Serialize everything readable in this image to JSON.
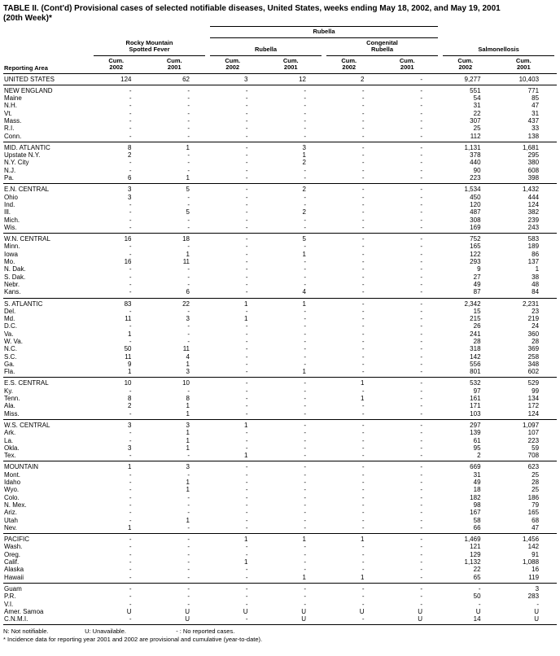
{
  "colors": {
    "text": "#000000",
    "background": "#ffffff",
    "rule": "#000000"
  },
  "title": "TABLE II. (Cont'd) Provisional cases of selected notifiable diseases, United States, weeks ending May 18, 2002, and May 19, 2001",
  "subtitle": "(20th Week)*",
  "header": {
    "reporting_area": "Reporting Area",
    "rubella_spanner": "Rubella",
    "groups": [
      "Rocky Mountain\nSpotted Fever",
      "Rubella",
      "Congenital\nRubella",
      "Salmonellosis"
    ],
    "subcols": [
      "Cum.\n2002",
      "Cum.\n2001",
      "Cum.\n2002",
      "Cum.\n2001",
      "Cum.\n2002",
      "Cum.\n2001",
      "Cum.\n2002",
      "Cum.\n2001"
    ]
  },
  "sections": [
    {
      "rows": [
        {
          "area": "UNITED STATES",
          "values": [
            "124",
            "62",
            "3",
            "12",
            "2",
            "-",
            "9,277",
            "10,403"
          ]
        }
      ]
    },
    {
      "rows": [
        {
          "area": "NEW ENGLAND",
          "values": [
            "-",
            "-",
            "-",
            "-",
            "-",
            "-",
            "551",
            "771"
          ]
        },
        {
          "area": "Maine",
          "values": [
            "-",
            "-",
            "-",
            "-",
            "-",
            "-",
            "54",
            "85"
          ]
        },
        {
          "area": "N.H.",
          "values": [
            "-",
            "-",
            "-",
            "-",
            "-",
            "-",
            "31",
            "47"
          ]
        },
        {
          "area": "Vt.",
          "values": [
            "-",
            "-",
            "-",
            "-",
            "-",
            "-",
            "22",
            "31"
          ]
        },
        {
          "area": "Mass.",
          "values": [
            "-",
            "-",
            "-",
            "-",
            "-",
            "-",
            "307",
            "437"
          ]
        },
        {
          "area": "R.I.",
          "values": [
            "-",
            "-",
            "-",
            "-",
            "-",
            "-",
            "25",
            "33"
          ]
        },
        {
          "area": "Conn.",
          "values": [
            "-",
            "-",
            "-",
            "-",
            "-",
            "-",
            "112",
            "138"
          ]
        }
      ]
    },
    {
      "rows": [
        {
          "area": "MID. ATLANTIC",
          "values": [
            "8",
            "1",
            "-",
            "3",
            "-",
            "-",
            "1,131",
            "1,681"
          ]
        },
        {
          "area": "Upstate N.Y.",
          "values": [
            "2",
            "-",
            "-",
            "1",
            "-",
            "-",
            "378",
            "295"
          ]
        },
        {
          "area": "N.Y. City",
          "values": [
            "-",
            "-",
            "-",
            "2",
            "-",
            "-",
            "440",
            "380"
          ]
        },
        {
          "area": "N.J.",
          "values": [
            "-",
            "-",
            "-",
            "-",
            "-",
            "-",
            "90",
            "608"
          ]
        },
        {
          "area": "Pa.",
          "values": [
            "6",
            "1",
            "-",
            "-",
            "-",
            "-",
            "223",
            "398"
          ]
        }
      ]
    },
    {
      "rows": [
        {
          "area": "E.N. CENTRAL",
          "values": [
            "3",
            "5",
            "-",
            "2",
            "-",
            "-",
            "1,534",
            "1,432"
          ]
        },
        {
          "area": "Ohio",
          "values": [
            "3",
            "-",
            "-",
            "-",
            "-",
            "-",
            "450",
            "444"
          ]
        },
        {
          "area": "Ind.",
          "values": [
            "-",
            "-",
            "-",
            "-",
            "-",
            "-",
            "120",
            "124"
          ]
        },
        {
          "area": "Ill.",
          "values": [
            "-",
            "5",
            "-",
            "2",
            "-",
            "-",
            "487",
            "382"
          ]
        },
        {
          "area": "Mich.",
          "values": [
            "-",
            "-",
            "-",
            "-",
            "-",
            "-",
            "308",
            "239"
          ]
        },
        {
          "area": "Wis.",
          "values": [
            "-",
            "-",
            "-",
            "-",
            "-",
            "-",
            "169",
            "243"
          ]
        }
      ]
    },
    {
      "rows": [
        {
          "area": "W.N. CENTRAL",
          "values": [
            "16",
            "18",
            "-",
            "5",
            "-",
            "-",
            "752",
            "583"
          ]
        },
        {
          "area": "Minn.",
          "values": [
            "-",
            "-",
            "-",
            "-",
            "-",
            "-",
            "165",
            "189"
          ]
        },
        {
          "area": "Iowa",
          "values": [
            "-",
            "1",
            "-",
            "1",
            "-",
            "-",
            "122",
            "86"
          ]
        },
        {
          "area": "Mo.",
          "values": [
            "16",
            "11",
            "-",
            "-",
            "-",
            "-",
            "293",
            "137"
          ]
        },
        {
          "area": "N. Dak.",
          "values": [
            "-",
            "-",
            "-",
            "-",
            "-",
            "-",
            "9",
            "1"
          ]
        },
        {
          "area": "S. Dak.",
          "values": [
            "-",
            "-",
            "-",
            "-",
            "-",
            "-",
            "27",
            "38"
          ]
        },
        {
          "area": "Nebr.",
          "values": [
            "-",
            "-",
            "-",
            "-",
            "-",
            "-",
            "49",
            "48"
          ]
        },
        {
          "area": "Kans.",
          "values": [
            "-",
            "6",
            "-",
            "4",
            "-",
            "-",
            "87",
            "84"
          ]
        }
      ]
    },
    {
      "rows": [
        {
          "area": "S. ATLANTIC",
          "values": [
            "83",
            "22",
            "1",
            "1",
            "-",
            "-",
            "2,342",
            "2,231"
          ]
        },
        {
          "area": "Del.",
          "values": [
            "-",
            "-",
            "-",
            "-",
            "-",
            "-",
            "15",
            "23"
          ]
        },
        {
          "area": "Md.",
          "values": [
            "11",
            "3",
            "1",
            "-",
            "-",
            "-",
            "215",
            "219"
          ]
        },
        {
          "area": "D.C.",
          "values": [
            "-",
            "-",
            "-",
            "-",
            "-",
            "-",
            "26",
            "24"
          ]
        },
        {
          "area": "Va.",
          "values": [
            "1",
            "-",
            "-",
            "-",
            "-",
            "-",
            "241",
            "360"
          ]
        },
        {
          "area": "W. Va.",
          "values": [
            "-",
            "-",
            "-",
            "-",
            "-",
            "-",
            "28",
            "28"
          ]
        },
        {
          "area": "N.C.",
          "values": [
            "50",
            "11",
            "-",
            "-",
            "-",
            "-",
            "318",
            "369"
          ]
        },
        {
          "area": "S.C.",
          "values": [
            "11",
            "4",
            "-",
            "-",
            "-",
            "-",
            "142",
            "258"
          ]
        },
        {
          "area": "Ga.",
          "values": [
            "9",
            "1",
            "-",
            "-",
            "-",
            "-",
            "556",
            "348"
          ]
        },
        {
          "area": "Fla.",
          "values": [
            "1",
            "3",
            "-",
            "1",
            "-",
            "-",
            "801",
            "602"
          ]
        }
      ]
    },
    {
      "rows": [
        {
          "area": "E.S. CENTRAL",
          "values": [
            "10",
            "10",
            "-",
            "-",
            "1",
            "-",
            "532",
            "529"
          ]
        },
        {
          "area": "Ky.",
          "values": [
            "-",
            "-",
            "-",
            "-",
            "-",
            "-",
            "97",
            "99"
          ]
        },
        {
          "area": "Tenn.",
          "values": [
            "8",
            "8",
            "-",
            "-",
            "1",
            "-",
            "161",
            "134"
          ]
        },
        {
          "area": "Ala.",
          "values": [
            "2",
            "1",
            "-",
            "-",
            "-",
            "-",
            "171",
            "172"
          ]
        },
        {
          "area": "Miss.",
          "values": [
            "-",
            "1",
            "-",
            "-",
            "-",
            "-",
            "103",
            "124"
          ]
        }
      ]
    },
    {
      "rows": [
        {
          "area": "W.S. CENTRAL",
          "values": [
            "3",
            "3",
            "1",
            "-",
            "-",
            "-",
            "297",
            "1,097"
          ]
        },
        {
          "area": "Ark.",
          "values": [
            "-",
            "1",
            "-",
            "-",
            "-",
            "-",
            "139",
            "107"
          ]
        },
        {
          "area": "La.",
          "values": [
            "-",
            "1",
            "-",
            "-",
            "-",
            "-",
            "61",
            "223"
          ]
        },
        {
          "area": "Okla.",
          "values": [
            "3",
            "1",
            "-",
            "-",
            "-",
            "-",
            "95",
            "59"
          ]
        },
        {
          "area": "Tex.",
          "values": [
            "-",
            "-",
            "1",
            "-",
            "-",
            "-",
            "2",
            "708"
          ]
        }
      ]
    },
    {
      "rows": [
        {
          "area": "MOUNTAIN",
          "values": [
            "1",
            "3",
            "-",
            "-",
            "-",
            "-",
            "669",
            "623"
          ]
        },
        {
          "area": "Mont.",
          "values": [
            "-",
            "-",
            "-",
            "-",
            "-",
            "-",
            "31",
            "25"
          ]
        },
        {
          "area": "Idaho",
          "values": [
            "-",
            "1",
            "-",
            "-",
            "-",
            "-",
            "49",
            "28"
          ]
        },
        {
          "area": "Wyo.",
          "values": [
            "-",
            "1",
            "-",
            "-",
            "-",
            "-",
            "18",
            "25"
          ]
        },
        {
          "area": "Colo.",
          "values": [
            "-",
            "-",
            "-",
            "-",
            "-",
            "-",
            "182",
            "186"
          ]
        },
        {
          "area": "N. Mex.",
          "values": [
            "-",
            "-",
            "-",
            "-",
            "-",
            "-",
            "98",
            "79"
          ]
        },
        {
          "area": "Ariz.",
          "values": [
            "-",
            "-",
            "-",
            "-",
            "-",
            "-",
            "167",
            "165"
          ]
        },
        {
          "area": "Utah",
          "values": [
            "-",
            "1",
            "-",
            "-",
            "-",
            "-",
            "58",
            "68"
          ]
        },
        {
          "area": "Nev.",
          "values": [
            "1",
            "-",
            "-",
            "-",
            "-",
            "-",
            "66",
            "47"
          ]
        }
      ]
    },
    {
      "rows": [
        {
          "area": "PACIFIC",
          "values": [
            "-",
            "-",
            "1",
            "1",
            "1",
            "-",
            "1,469",
            "1,456"
          ]
        },
        {
          "area": "Wash.",
          "values": [
            "-",
            "-",
            "-",
            "-",
            "-",
            "-",
            "121",
            "142"
          ]
        },
        {
          "area": "Oreg.",
          "values": [
            "-",
            "-",
            "-",
            "-",
            "-",
            "-",
            "129",
            "91"
          ]
        },
        {
          "area": "Calif.",
          "values": [
            "-",
            "-",
            "1",
            "-",
            "-",
            "-",
            "1,132",
            "1,088"
          ]
        },
        {
          "area": "Alaska",
          "values": [
            "-",
            "-",
            "-",
            "-",
            "-",
            "-",
            "22",
            "16"
          ]
        },
        {
          "area": "Hawaii",
          "values": [
            "-",
            "-",
            "-",
            "1",
            "1",
            "-",
            "65",
            "119"
          ]
        }
      ]
    },
    {
      "rows": [
        {
          "area": "Guam",
          "values": [
            "-",
            "-",
            "-",
            "-",
            "-",
            "-",
            "-",
            "3"
          ]
        },
        {
          "area": "P.R.",
          "values": [
            "-",
            "-",
            "-",
            "-",
            "-",
            "-",
            "50",
            "283"
          ]
        },
        {
          "area": "V.I.",
          "values": [
            "-",
            "-",
            "-",
            "-",
            "-",
            "-",
            "-",
            "-"
          ]
        },
        {
          "area": "Amer. Samoa",
          "values": [
            "U",
            "U",
            "U",
            "U",
            "U",
            "U",
            "U",
            "U"
          ]
        },
        {
          "area": "C.N.M.I.",
          "values": [
            "-",
            "U",
            "-",
            "U",
            "-",
            "U",
            "14",
            "U"
          ]
        }
      ]
    }
  ],
  "footnotes": {
    "legend": [
      "N: Not notifiable.",
      "U: Unavailable.",
      "- : No reported cases."
    ],
    "note": "* Incidence data for reporting year 2001 and 2002 are provisional and cumulative (year-to-date)."
  }
}
